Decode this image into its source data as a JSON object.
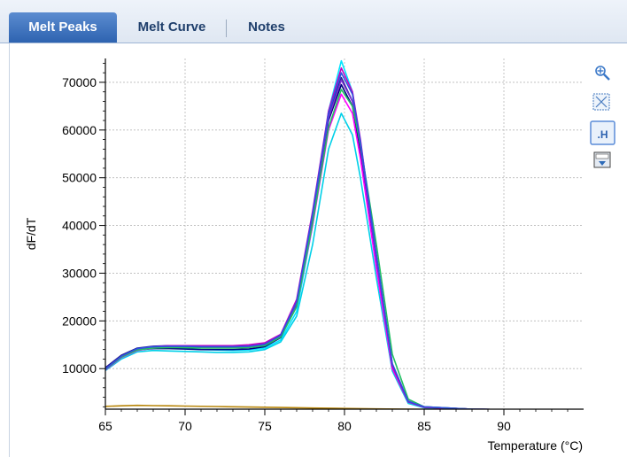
{
  "tabs": [
    "Melt Peaks",
    "Melt Curve",
    "Notes"
  ],
  "toolbar": {
    "peak_label": ".H",
    "icons": [
      "zoom-in-icon",
      "zoom-fit-icon",
      "peak-height-icon",
      "export-icon"
    ]
  },
  "colors": {
    "accent": "#2e63b0",
    "tab_text": "#1f3f6c",
    "grid": "#b8b8b8"
  },
  "chart_data": {
    "type": "line",
    "title": "",
    "xlabel": "Temperature (°C)",
    "ylabel": "dF/dT",
    "xlim": [
      65,
      95
    ],
    "ylim": [
      1500,
      75000
    ],
    "xticks": [
      65,
      70,
      75,
      80,
      85,
      90
    ],
    "yticks": [
      10000,
      20000,
      30000,
      40000,
      50000,
      60000,
      70000
    ],
    "grid": true,
    "legend": false,
    "series": [
      {
        "color": "#00e5ff",
        "values": [
          [
            65,
            9800
          ],
          [
            66,
            12500
          ],
          [
            67,
            14200
          ],
          [
            68,
            14500
          ],
          [
            69,
            14400
          ],
          [
            70,
            14200
          ],
          [
            71,
            14000
          ],
          [
            72,
            13900
          ],
          [
            73,
            13800
          ],
          [
            74,
            13900
          ],
          [
            75,
            14300
          ],
          [
            76,
            16000
          ],
          [
            77,
            22000
          ],
          [
            78,
            40000
          ],
          [
            79,
            64000
          ],
          [
            79.8,
            74500
          ],
          [
            80.5,
            68000
          ],
          [
            81,
            57000
          ],
          [
            82,
            32000
          ],
          [
            83,
            10000
          ],
          [
            84,
            2800
          ],
          [
            85,
            1800
          ],
          [
            86,
            1600
          ],
          [
            88,
            1500
          ],
          [
            90,
            1400
          ],
          [
            95,
            1200
          ]
        ]
      },
      {
        "color": "#00d0e8",
        "values": [
          [
            65,
            9600
          ],
          [
            66,
            12000
          ],
          [
            67,
            13500
          ],
          [
            68,
            13800
          ],
          [
            69,
            13700
          ],
          [
            70,
            13600
          ],
          [
            71,
            13500
          ],
          [
            72,
            13400
          ],
          [
            73,
            13400
          ],
          [
            74,
            13500
          ],
          [
            75,
            14000
          ],
          [
            76,
            15600
          ],
          [
            77,
            21000
          ],
          [
            78,
            36000
          ],
          [
            79,
            56000
          ],
          [
            79.8,
            63500
          ],
          [
            80.5,
            59000
          ],
          [
            81,
            50000
          ],
          [
            82,
            29000
          ],
          [
            83,
            9500
          ],
          [
            84,
            2700
          ],
          [
            85,
            1800
          ],
          [
            88,
            1500
          ],
          [
            95,
            1200
          ]
        ]
      },
      {
        "color": "#1f1f8f",
        "values": [
          [
            65,
            10200
          ],
          [
            66,
            12800
          ],
          [
            67,
            14300
          ],
          [
            68,
            14700
          ],
          [
            69,
            14800
          ],
          [
            70,
            14700
          ],
          [
            71,
            14600
          ],
          [
            72,
            14600
          ],
          [
            73,
            14600
          ],
          [
            74,
            14700
          ],
          [
            75,
            15100
          ],
          [
            76,
            17000
          ],
          [
            77,
            24000
          ],
          [
            78,
            42000
          ],
          [
            79,
            63000
          ],
          [
            79.8,
            71000
          ],
          [
            80.5,
            66000
          ],
          [
            81,
            56000
          ],
          [
            82,
            32000
          ],
          [
            83,
            10000
          ],
          [
            84,
            3000
          ],
          [
            85,
            1900
          ],
          [
            88,
            1500
          ],
          [
            95,
            1200
          ]
        ]
      },
      {
        "color": "#000080",
        "values": [
          [
            65,
            9900
          ],
          [
            66,
            12400
          ],
          [
            67,
            13900
          ],
          [
            68,
            14200
          ],
          [
            69,
            14200
          ],
          [
            70,
            14100
          ],
          [
            71,
            14000
          ],
          [
            72,
            14000
          ],
          [
            73,
            14000
          ],
          [
            74,
            14100
          ],
          [
            75,
            14600
          ],
          [
            76,
            16500
          ],
          [
            77,
            23500
          ],
          [
            78,
            41500
          ],
          [
            79,
            62000
          ],
          [
            79.8,
            69500
          ],
          [
            80.5,
            65000
          ],
          [
            81,
            55500
          ],
          [
            82,
            32500
          ],
          [
            83,
            10500
          ],
          [
            84,
            3100
          ],
          [
            85,
            1900
          ],
          [
            88,
            1500
          ],
          [
            95,
            1200
          ]
        ]
      },
      {
        "color": "#ff00ff",
        "values": [
          [
            65,
            9700
          ],
          [
            66,
            12300
          ],
          [
            67,
            13800
          ],
          [
            68,
            14300
          ],
          [
            69,
            14500
          ],
          [
            70,
            14500
          ],
          [
            71,
            14500
          ],
          [
            72,
            14500
          ],
          [
            73,
            14500
          ],
          [
            74,
            14700
          ],
          [
            75,
            15200
          ],
          [
            76,
            17000
          ],
          [
            77,
            23000
          ],
          [
            78,
            40000
          ],
          [
            79,
            60000
          ],
          [
            79.8,
            67500
          ],
          [
            80.5,
            63500
          ],
          [
            81,
            54000
          ],
          [
            82,
            31000
          ],
          [
            83,
            10000
          ],
          [
            84,
            3000
          ],
          [
            85,
            1900
          ],
          [
            88,
            1500
          ],
          [
            95,
            1200
          ]
        ]
      },
      {
        "color": "#c000c0",
        "values": [
          [
            65,
            9900
          ],
          [
            66,
            12600
          ],
          [
            67,
            14100
          ],
          [
            68,
            14600
          ],
          [
            69,
            14800
          ],
          [
            70,
            14800
          ],
          [
            71,
            14800
          ],
          [
            72,
            14800
          ],
          [
            73,
            14800
          ],
          [
            74,
            15000
          ],
          [
            75,
            15400
          ],
          [
            76,
            17200
          ],
          [
            77,
            24500
          ],
          [
            78,
            43000
          ],
          [
            79,
            64000
          ],
          [
            79.8,
            73000
          ],
          [
            80.5,
            68000
          ],
          [
            81,
            58000
          ],
          [
            82,
            33000
          ],
          [
            83,
            10500
          ],
          [
            84,
            3000
          ],
          [
            85,
            1900
          ],
          [
            88,
            1500
          ],
          [
            95,
            1200
          ]
        ]
      },
      {
        "color": "#7b2fd0",
        "values": [
          [
            65,
            9800
          ],
          [
            66,
            12500
          ],
          [
            67,
            14000
          ],
          [
            68,
            14400
          ],
          [
            69,
            14500
          ],
          [
            70,
            14500
          ],
          [
            71,
            14400
          ],
          [
            72,
            14400
          ],
          [
            73,
            14400
          ],
          [
            74,
            14500
          ],
          [
            75,
            14900
          ],
          [
            76,
            16800
          ],
          [
            77,
            23800
          ],
          [
            78,
            42000
          ],
          [
            79,
            62500
          ],
          [
            79.8,
            70500
          ],
          [
            80.5,
            66000
          ],
          [
            81,
            56500
          ],
          [
            82,
            33000
          ],
          [
            83,
            11000
          ],
          [
            84,
            3200
          ],
          [
            85,
            2000
          ],
          [
            88,
            1500
          ],
          [
            95,
            1200
          ]
        ]
      },
      {
        "color": "#20c060",
        "values": [
          [
            65,
            9800
          ],
          [
            66,
            12400
          ],
          [
            67,
            13900
          ],
          [
            68,
            14300
          ],
          [
            69,
            14400
          ],
          [
            70,
            14400
          ],
          [
            71,
            14300
          ],
          [
            72,
            14300
          ],
          [
            73,
            14300
          ],
          [
            74,
            14400
          ],
          [
            75,
            14800
          ],
          [
            76,
            16600
          ],
          [
            77,
            23000
          ],
          [
            78,
            40500
          ],
          [
            79,
            60500
          ],
          [
            79.8,
            68500
          ],
          [
            80.5,
            65000
          ],
          [
            81,
            57000
          ],
          [
            82,
            36000
          ],
          [
            83,
            13000
          ],
          [
            84,
            3600
          ],
          [
            85,
            2000
          ],
          [
            88,
            1500
          ],
          [
            95,
            1200
          ]
        ]
      },
      {
        "color": "#3050e0",
        "values": [
          [
            65,
            9900
          ],
          [
            66,
            12600
          ],
          [
            67,
            14200
          ],
          [
            68,
            14600
          ],
          [
            69,
            14700
          ],
          [
            70,
            14700
          ],
          [
            71,
            14600
          ],
          [
            72,
            14600
          ],
          [
            73,
            14600
          ],
          [
            74,
            14700
          ],
          [
            75,
            15100
          ],
          [
            76,
            17000
          ],
          [
            77,
            24000
          ],
          [
            78,
            42500
          ],
          [
            79,
            63500
          ],
          [
            79.8,
            72000
          ],
          [
            80.5,
            67500
          ],
          [
            81,
            57500
          ],
          [
            82,
            34000
          ],
          [
            83,
            11000
          ],
          [
            84,
            3100
          ],
          [
            85,
            2000
          ],
          [
            88,
            1500
          ],
          [
            95,
            1200
          ]
        ]
      },
      {
        "color": "#b8860b",
        "values": [
          [
            65,
            2100
          ],
          [
            66,
            2200
          ],
          [
            67,
            2300
          ],
          [
            68,
            2250
          ],
          [
            69,
            2200
          ],
          [
            70,
            2150
          ],
          [
            72,
            2050
          ],
          [
            74,
            1950
          ],
          [
            76,
            1850
          ],
          [
            78,
            1750
          ],
          [
            80,
            1650
          ],
          [
            82,
            1550
          ],
          [
            84,
            1500
          ],
          [
            86,
            1450
          ],
          [
            90,
            1350
          ],
          [
            95,
            1250
          ]
        ]
      }
    ]
  }
}
